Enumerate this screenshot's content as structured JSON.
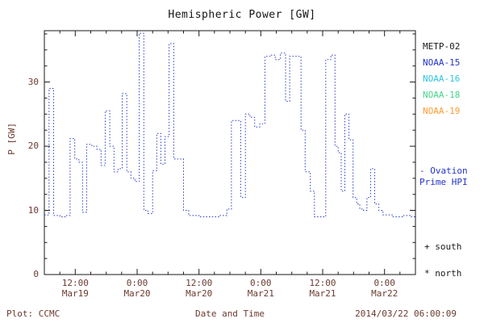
{
  "title": "Hemispheric Power [GW]",
  "ylabel": "P [GW]",
  "xlabel": "Date and Time",
  "footer": {
    "left": "Plot: CCMC",
    "right": "2014/03/22 06:00:09"
  },
  "legend": {
    "satellites": [
      {
        "label": "METP-02",
        "color": "#1a1a1a"
      },
      {
        "label": "NOAA-15",
        "color": "#2233cc"
      },
      {
        "label": "NOAA-16",
        "color": "#2fc4e0"
      },
      {
        "label": "NOAA-18",
        "color": "#45d58a"
      },
      {
        "label": "NOAA-19",
        "color": "#ff9c33"
      }
    ],
    "model": {
      "line1": "- Ovation",
      "line2": "Prime HPI",
      "color": "#2233cc"
    },
    "markers": [
      {
        "label": "+ south"
      },
      {
        "label": "* north"
      }
    ]
  },
  "chart_data": {
    "type": "line",
    "subtype": "step-dotted",
    "title": "Hemispheric Power [GW]",
    "xlabel": "Date and Time",
    "ylabel": "P [GW]",
    "series_name": "Ovation Prime HPI",
    "series_color": "#2b3bc4",
    "grid": false,
    "ylim": [
      0,
      38
    ],
    "yticks": [
      0,
      10,
      20,
      30
    ],
    "x_range_hours": [
      0,
      72
    ],
    "x_start": "Mar19 06:00",
    "x_end": "Mar22 06:00",
    "xticks": [
      {
        "hours": 6,
        "time": "12:00",
        "date": "Mar19"
      },
      {
        "hours": 18,
        "time": "0:00",
        "date": "Mar20"
      },
      {
        "hours": 30,
        "time": "12:00",
        "date": "Mar20"
      },
      {
        "hours": 42,
        "time": "0:00",
        "date": "Mar21"
      },
      {
        "hours": 54,
        "time": "12:00",
        "date": "Mar21"
      },
      {
        "hours": 66,
        "time": "0:00",
        "date": "Mar22"
      }
    ],
    "x_hours": [
      0.0,
      0.9,
      1.8,
      3.0,
      4.2,
      5.0,
      5.9,
      6.7,
      7.4,
      8.2,
      9.2,
      10.2,
      11.0,
      11.8,
      12.7,
      13.5,
      14.3,
      15.1,
      16.0,
      16.8,
      17.6,
      18.4,
      19.3,
      20.1,
      21.0,
      21.8,
      22.6,
      23.4,
      24.2,
      25.1,
      26.1,
      27.0,
      28.0,
      30.0,
      32.0,
      34.0,
      35.4,
      36.3,
      37.3,
      38.1,
      39.0,
      39.9,
      40.8,
      41.8,
      42.8,
      43.8,
      44.8,
      45.8,
      46.8,
      47.6,
      48.6,
      49.8,
      50.6,
      51.6,
      52.4,
      54.6,
      55.6,
      56.4,
      57.0,
      57.6,
      58.3,
      59.1,
      59.9,
      60.6,
      61.2,
      61.9,
      62.6,
      63.3,
      64.1,
      64.9,
      65.7,
      67.5,
      69.5,
      71.0
    ],
    "values": [
      9.3,
      29.0,
      9.2,
      9.0,
      9.2,
      21.2,
      18.0,
      17.5,
      9.7,
      20.3,
      20.0,
      19.5,
      17.0,
      25.5,
      20.0,
      16.0,
      16.5,
      28.2,
      16.0,
      15.0,
      14.5,
      37.6,
      10.0,
      9.5,
      16.2,
      22.0,
      17.2,
      21.5,
      36.0,
      18.0,
      18.0,
      10.0,
      9.2,
      9.0,
      9.0,
      9.2,
      10.2,
      24.0,
      24.0,
      12.0,
      25.0,
      24.5,
      23.0,
      23.5,
      34.0,
      34.2,
      33.5,
      34.5,
      27.0,
      34.0,
      34.0,
      22.5,
      16.0,
      13.0,
      9.0,
      33.5,
      34.2,
      20.0,
      19.0,
      13.0,
      25.0,
      21.0,
      12.0,
      11.0,
      10.2,
      10.0,
      12.0,
      16.5,
      11.0,
      10.0,
      9.3,
      9.0,
      9.2,
      9.0
    ]
  }
}
